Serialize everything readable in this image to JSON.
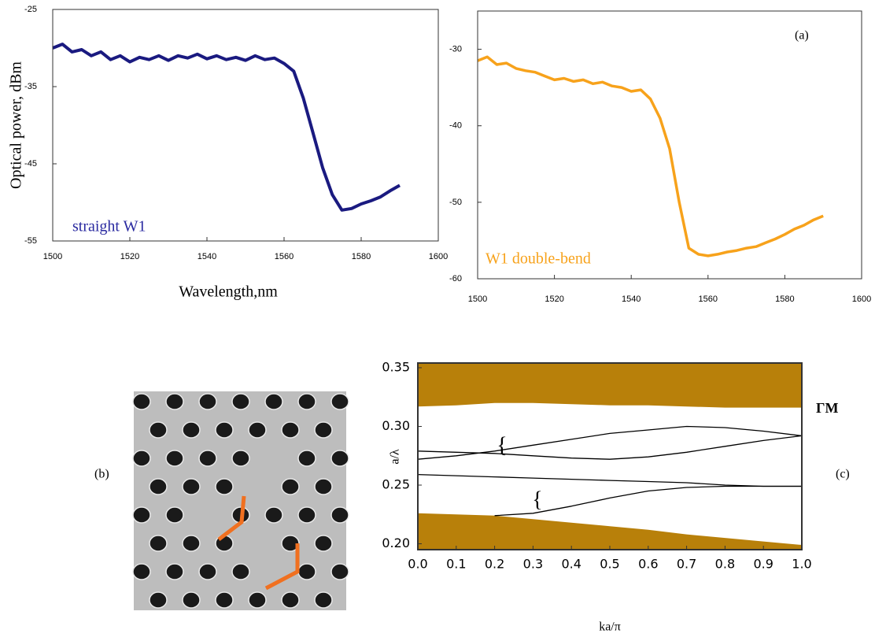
{
  "chart_data": [
    {
      "type": "line",
      "x": [
        1500,
        1502.5,
        1505,
        1507.5,
        1510,
        1512.5,
        1515,
        1517.5,
        1520,
        1522.5,
        1525,
        1527.5,
        1530,
        1532.5,
        1535,
        1537.5,
        1540,
        1542.5,
        1545,
        1547.5,
        1550,
        1552.5,
        1555,
        1557.5,
        1560,
        1562.5,
        1565,
        1567.5,
        1570,
        1572.5,
        1575,
        1577.5,
        1580,
        1582.5,
        1585,
        1587.5,
        1590
      ],
      "series": [
        {
          "color": "#1a1a80",
          "values": [
            -30,
            -29.5,
            -30.5,
            -30.2,
            -31,
            -30.5,
            -31.5,
            -31,
            -31.8,
            -31.2,
            -31.5,
            -31,
            -31.6,
            -31,
            -31.3,
            -30.8,
            -31.4,
            -31,
            -31.5,
            -31.2,
            -31.6,
            -31,
            -31.5,
            -31.3,
            -32,
            -33,
            -36.5,
            -41,
            -45.5,
            -49,
            -51,
            -50.8,
            -50.2,
            -49.8,
            -49.3,
            -48.5,
            -47.8
          ]
        }
      ],
      "xlim": [
        1500,
        1600
      ],
      "xticks": [
        1500,
        1520,
        1540,
        1560,
        1580,
        1600
      ],
      "ylim": [
        -55,
        -25
      ],
      "yticks": [
        -25,
        -35,
        -45,
        -55
      ],
      "x_label": "Wavelength,nm",
      "y_label": "Optical power, dBm",
      "annotations": [
        {
          "text": "straight W1",
          "color": "#2a2aa0"
        }
      ]
    },
    {
      "type": "line",
      "x": [
        1500,
        1502.5,
        1505,
        1507.5,
        1510,
        1512.5,
        1515,
        1517.5,
        1520,
        1522.5,
        1525,
        1527.5,
        1530,
        1532.5,
        1535,
        1537.5,
        1540,
        1542.5,
        1545,
        1547.5,
        1550,
        1552.5,
        1555,
        1557.5,
        1560,
        1562.5,
        1565,
        1567.5,
        1570,
        1572.5,
        1575,
        1577.5,
        1580,
        1582.5,
        1585,
        1587.5,
        1590
      ],
      "series": [
        {
          "color": "#f7a21b",
          "values": [
            -31.5,
            -31,
            -32,
            -31.8,
            -32.5,
            -32.8,
            -33,
            -33.5,
            -34,
            -33.8,
            -34.2,
            -34,
            -34.5,
            -34.3,
            -34.8,
            -35,
            -35.5,
            -35.3,
            -36.5,
            -39,
            -43,
            -50,
            -56,
            -56.8,
            -57,
            -56.8,
            -56.5,
            -56.3,
            -56,
            -55.8,
            -55.3,
            -54.8,
            -54.2,
            -53.5,
            -53,
            -52.3,
            -51.8
          ]
        }
      ],
      "xlim": [
        1500,
        1600
      ],
      "xticks": [
        1500,
        1520,
        1540,
        1560,
        1580,
        1600
      ],
      "ylim": [
        -60,
        -25
      ],
      "yticks": [
        -30,
        -40,
        -50,
        -60
      ],
      "annotations": [
        {
          "text": "(a)",
          "color": "#000000"
        },
        {
          "text": "W1 double-bend",
          "color": "#f7a21b"
        }
      ]
    },
    {
      "type": "line",
      "x": [
        0,
        0.1,
        0.2,
        0.3,
        0.4,
        0.5,
        0.6,
        0.7,
        0.8,
        0.9,
        1.0
      ],
      "series": [
        {
          "color": "#b8800a",
          "fill": "above",
          "values": [
            0.317,
            0.318,
            0.32,
            0.32,
            0.319,
            0.318,
            0.318,
            0.317,
            0.316,
            0.316,
            0.316
          ]
        },
        {
          "color": "#b8800a",
          "fill": "below",
          "values": [
            0.226,
            0.225,
            0.224,
            0.221,
            0.218,
            0.215,
            0.212,
            0.208,
            0.205,
            0.202,
            0.199
          ]
        },
        {
          "color": "#000000",
          "values": [
            0.272,
            0.275,
            0.279,
            0.284,
            0.289,
            0.294,
            0.297,
            0.3,
            0.299,
            0.296,
            0.292
          ]
        },
        {
          "color": "#000000",
          "values": [
            0.279,
            0.278,
            0.277,
            0.275,
            0.273,
            0.272,
            0.274,
            0.278,
            0.283,
            0.288,
            0.292
          ]
        },
        {
          "color": "#000000",
          "values": [
            0.259,
            0.258,
            0.257,
            0.256,
            0.255,
            0.254,
            0.253,
            0.252,
            0.25,
            0.249,
            0.249
          ]
        },
        {
          "color": "#000000",
          "values": [
            null,
            null,
            0.224,
            0.226,
            0.232,
            0.239,
            0.245,
            0.248,
            0.249,
            0.249,
            0.249
          ]
        }
      ],
      "xlim": [
        0,
        1
      ],
      "xticks": [
        {
          "value": 0,
          "label": "0.0"
        },
        0.1,
        0.2,
        0.3,
        0.4,
        0.5,
        0.6,
        0.7,
        0.8,
        0.9,
        {
          "value": 1,
          "label": "1.0"
        }
      ],
      "ylim": [
        0.195,
        0.354
      ],
      "yticks": [
        0.35,
        {
          "value": 0.3,
          "label": "0.30"
        },
        0.25,
        {
          "value": 0.2,
          "label": "0.20"
        }
      ],
      "x_label": "ka/π",
      "y_label": "a/λ",
      "annotations": [
        {
          "text": "ΓM",
          "color": "#000000"
        },
        {
          "text": "(c)",
          "color": "#000000"
        },
        {
          "text": "{",
          "color": "#000000"
        },
        {
          "text": "{",
          "color": "#000000"
        }
      ]
    }
  ],
  "image_panel": {
    "label": "(b)"
  }
}
